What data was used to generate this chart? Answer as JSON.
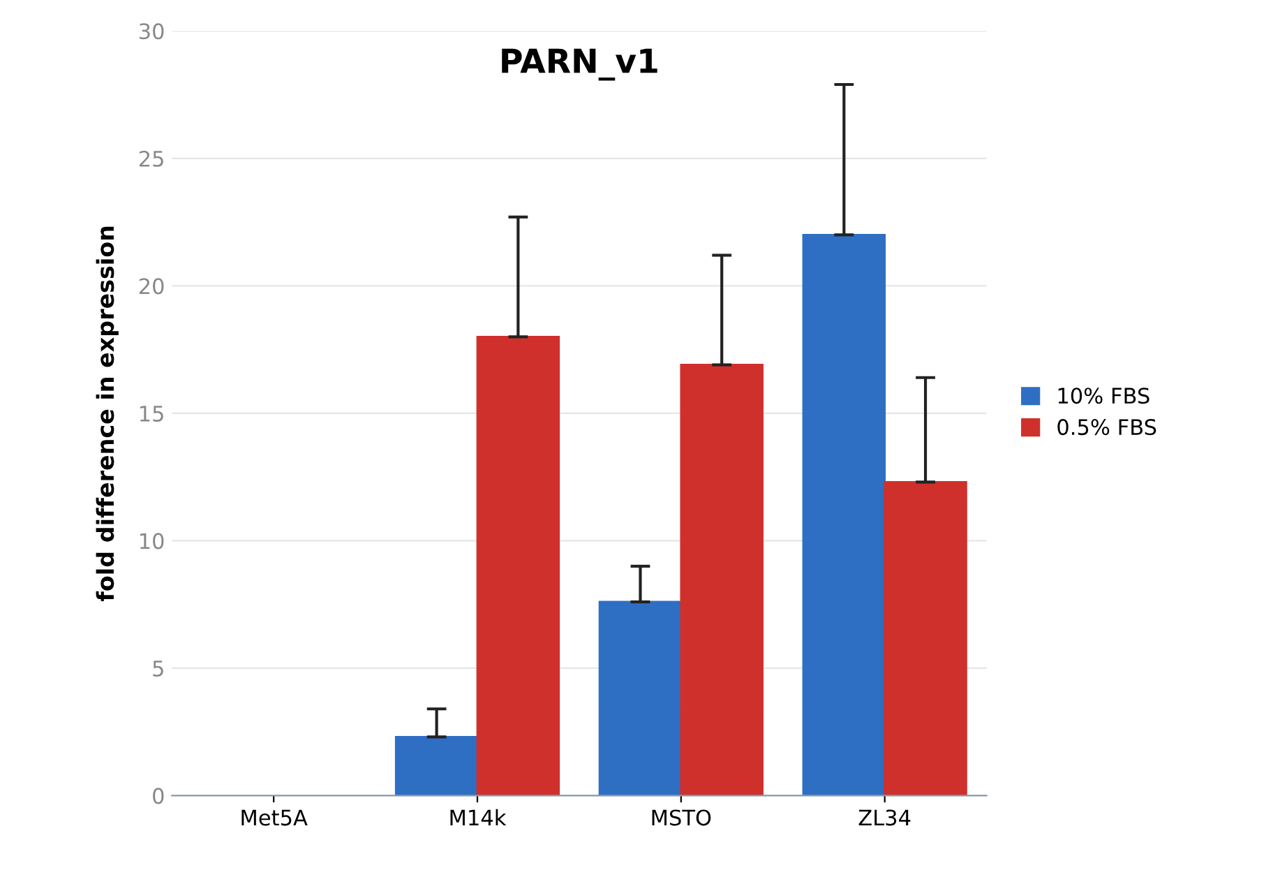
{
  "chart_data": {
    "type": "bar",
    "title": "PARN_v1",
    "ylabel": "fold difference in expression",
    "categories": [
      "Met5A",
      "M14k",
      "MSTO",
      "ZL34"
    ],
    "series": [
      {
        "name": "10% FBS",
        "color": "#2e6fc4",
        "values": [
          null,
          2.3,
          7.6,
          22.0
        ],
        "errors": [
          null,
          1.1,
          1.4,
          5.9
        ]
      },
      {
        "name": "0.5% FBS",
        "color": "#d0302c",
        "values": [
          null,
          18.0,
          16.9,
          12.3
        ],
        "errors": [
          null,
          4.7,
          4.3,
          4.1
        ]
      }
    ],
    "ylim": [
      0,
      30
    ],
    "yticks": [
      0,
      5,
      10,
      15,
      20,
      25,
      30
    ],
    "grid": "y",
    "legend": "right"
  }
}
